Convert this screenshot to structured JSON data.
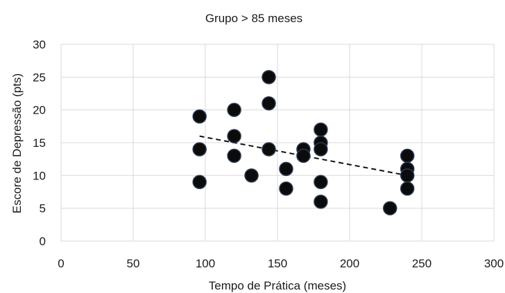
{
  "chart_data": {
    "type": "scatter",
    "title": "Grupo > 85 meses",
    "xlabel": "Tempo de Prática (meses)",
    "ylabel": "Escore de Depressão (pts)",
    "xlim": [
      0,
      300
    ],
    "ylim": [
      0,
      30
    ],
    "x_ticks": [
      "0",
      "50",
      "100",
      "150",
      "200",
      "250",
      "300"
    ],
    "y_ticks": [
      "0",
      "5",
      "10",
      "15",
      "20",
      "25",
      "30"
    ],
    "grid": true,
    "legend": "none",
    "marker_color": "#0b0b0b",
    "points": [
      {
        "x": 96,
        "y": 19
      },
      {
        "x": 96,
        "y": 14
      },
      {
        "x": 96,
        "y": 9
      },
      {
        "x": 120,
        "y": 20
      },
      {
        "x": 120,
        "y": 16
      },
      {
        "x": 120,
        "y": 13
      },
      {
        "x": 132,
        "y": 10
      },
      {
        "x": 144,
        "y": 25
      },
      {
        "x": 144,
        "y": 21
      },
      {
        "x": 144,
        "y": 14
      },
      {
        "x": 156,
        "y": 11
      },
      {
        "x": 156,
        "y": 8
      },
      {
        "x": 168,
        "y": 14
      },
      {
        "x": 168,
        "y": 13
      },
      {
        "x": 180,
        "y": 17
      },
      {
        "x": 180,
        "y": 15
      },
      {
        "x": 180,
        "y": 14
      },
      {
        "x": 180,
        "y": 9
      },
      {
        "x": 180,
        "y": 6
      },
      {
        "x": 228,
        "y": 5
      },
      {
        "x": 240,
        "y": 13
      },
      {
        "x": 240,
        "y": 11
      },
      {
        "x": 240,
        "y": 10
      },
      {
        "x": 240,
        "y": 8
      }
    ],
    "trendline": {
      "style": "dashed",
      "x": [
        96,
        240
      ],
      "y": [
        16,
        10
      ]
    }
  }
}
